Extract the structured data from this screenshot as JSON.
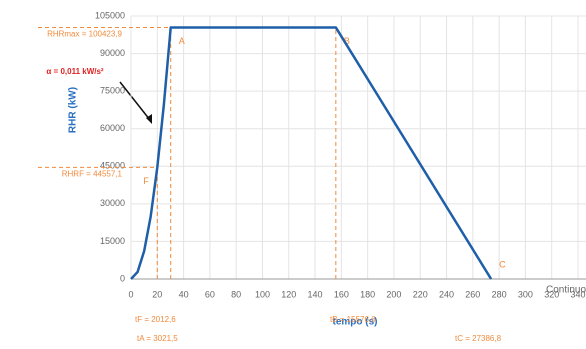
{
  "chart_data": {
    "type": "line",
    "x": [
      0,
      5,
      10,
      15,
      20,
      25,
      30.2,
      155.8,
      273.9
    ],
    "values": [
      0,
      2785,
      11140,
      25065,
      44557.1,
      69625,
      100423.9,
      100423.9,
      0
    ],
    "color": "#1f5fa8",
    "xlim": [
      0,
      340
    ],
    "xticks": [
      0,
      20,
      40,
      60,
      80,
      100,
      120,
      140,
      160,
      180,
      200,
      220,
      240,
      260,
      280,
      300,
      320,
      340
    ],
    "ylim": [
      0,
      105000
    ],
    "yticks": [
      0,
      15000,
      30000,
      45000,
      60000,
      75000,
      90000,
      105000
    ],
    "grid": true,
    "xlabel": "tempo (s)",
    "ylabel": "RHR (kW)",
    "x_note": "Continuous",
    "annotation": "α = 0,011 kW/s²",
    "reference_color": "#f08a3c",
    "reference_points": [
      {
        "label": "F",
        "x": 20,
        "y": 44557.1,
        "x_label": "tF = 2012,6",
        "y_label": "RHRF = 44557,1"
      },
      {
        "label": "A",
        "x": 30.2,
        "y": 100423.9,
        "x_label": "tA = 3021,5",
        "y_label": "RHRmax = 100423,9"
      },
      {
        "label": "B",
        "x": 155.8,
        "y": 100423.9,
        "x_label": "tB = 15576,6"
      },
      {
        "label": "C",
        "x": 273.9,
        "y": 0,
        "x_label": "tC = 27386,8"
      }
    ]
  }
}
